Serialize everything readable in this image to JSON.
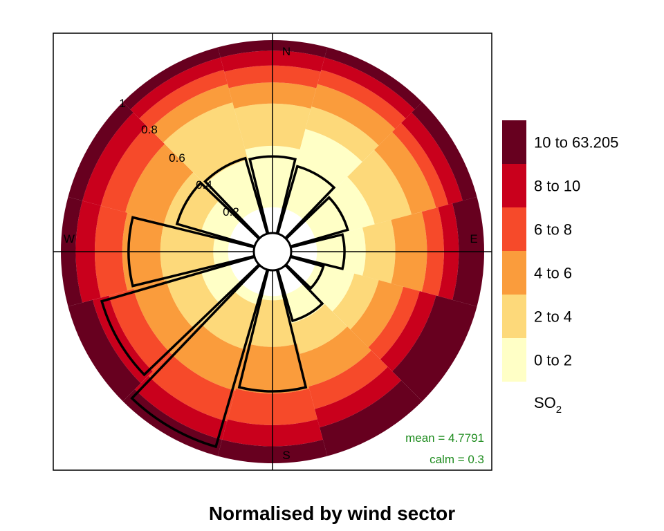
{
  "chart_data": {
    "type": "pollution-rose",
    "title": "Normalised by wind sector",
    "directions": [
      "N",
      "E",
      "S",
      "W"
    ],
    "radial_ticks": [
      "0.2",
      "0.4",
      "0.6",
      "0.8",
      "1"
    ],
    "radial_range": [
      0,
      1
    ],
    "sector_width_deg": 30,
    "sectors": [
      {
        "angle": 0,
        "bounds": [
          0.21,
          0.5,
          0.7,
          0.8,
          0.88,
          0.95,
          1.0
        ],
        "freq": 0.45
      },
      {
        "angle": 30,
        "bounds": [
          0.21,
          0.6,
          0.71,
          0.82,
          0.89,
          0.95,
          1.0
        ],
        "freq": 0.42
      },
      {
        "angle": 60,
        "bounds": [
          0.21,
          0.5,
          0.68,
          0.8,
          0.86,
          0.93,
          1.0
        ],
        "freq": 0.37
      },
      {
        "angle": 90,
        "bounds": [
          0.21,
          0.44,
          0.58,
          0.73,
          0.81,
          0.88,
          1.0
        ],
        "freq": 0.34
      },
      {
        "angle": 120,
        "bounds": [
          0.21,
          0.4,
          0.52,
          0.64,
          0.72,
          0.8,
          1.0
        ],
        "freq": 0.25
      },
      {
        "angle": 150,
        "bounds": [
          0.21,
          0.35,
          0.5,
          0.66,
          0.77,
          0.86,
          1.0
        ],
        "freq": 0.34
      },
      {
        "angle": 180,
        "bounds": [
          0.21,
          0.23,
          0.45,
          0.67,
          0.82,
          0.92,
          1.0
        ],
        "freq": 0.66
      },
      {
        "angle": 210,
        "bounds": [
          0.21,
          0.26,
          0.48,
          0.68,
          0.83,
          0.92,
          1.0
        ],
        "freq": 0.96
      },
      {
        "angle": 240,
        "bounds": [
          0.21,
          0.35,
          0.52,
          0.68,
          0.8,
          0.88,
          1.0
        ],
        "freq": 0.84
      },
      {
        "angle": 270,
        "bounds": [
          0.21,
          0.28,
          0.53,
          0.71,
          0.84,
          0.93,
          1.0
        ],
        "freq": 0.68
      },
      {
        "angle": 300,
        "bounds": [
          0.21,
          0.35,
          0.53,
          0.72,
          0.84,
          0.93,
          1.0
        ],
        "freq": 0.47
      },
      {
        "angle": 330,
        "bounds": [
          0.21,
          0.45,
          0.73,
          0.82,
          0.89,
          0.95,
          1.0
        ],
        "freq": 0.46
      }
    ],
    "legend": {
      "items": [
        {
          "label": "10 to 63.205",
          "color": "#67001f"
        },
        {
          "label": "8 to 10",
          "color": "#c9001c"
        },
        {
          "label": "6 to 8",
          "color": "#f64a2a"
        },
        {
          "label": "4 to 6",
          "color": "#fa9c3c"
        },
        {
          "label": "2 to 4",
          "color": "#fdd97a"
        },
        {
          "label": "0 to 2",
          "color": "#ffffc6"
        }
      ],
      "variable": "SO",
      "variable_sub": "2"
    },
    "stats": {
      "mean": "mean = 4.7791",
      "calm": "calm = 0.3",
      "color": "#1f8c1f"
    }
  }
}
